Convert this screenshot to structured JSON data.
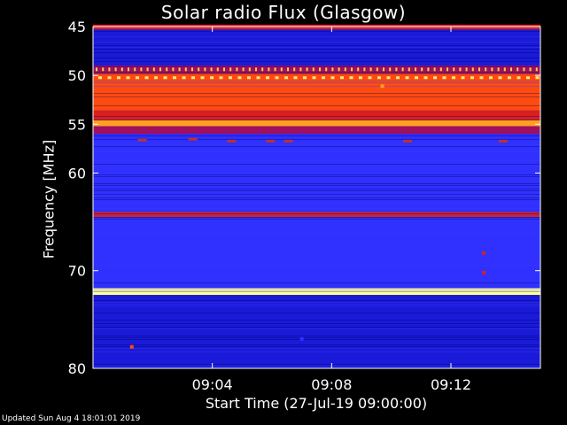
{
  "title": "Solar radio Flux (Glasgow)",
  "updated": "Updated Sun Aug  4 18:01:01 2019",
  "chart_data": {
    "type": "heatmap",
    "title": "Solar radio Flux (Glasgow)",
    "xlabel": "Start Time (27-Jul-19 09:00:00)",
    "ylabel": "Frequency [MHz]",
    "x_ticks": [
      "09:04",
      "09:08",
      "09:12"
    ],
    "x_tick_minutes": [
      4,
      8,
      12
    ],
    "xlim_minutes": [
      0,
      15
    ],
    "y_ticks": [
      "45",
      "50",
      "55",
      "60",
      "70",
      "80"
    ],
    "y_tick_values": [
      45,
      50,
      55,
      60,
      70,
      80
    ],
    "ylim": [
      45,
      80
    ],
    "y_inverted": true,
    "colormap": [
      "#10106e",
      "#1a1ad8",
      "#3030ff",
      "#a01060",
      "#d82020",
      "#ff4a10",
      "#ffa020",
      "#ffffa0"
    ],
    "bands": [
      {
        "f0": 44.8,
        "f1": 45.3,
        "level": 4
      },
      {
        "f0": 45.3,
        "f1": 49.0,
        "level": 1
      },
      {
        "f0": 49.0,
        "f1": 49.8,
        "level": 3
      },
      {
        "f0": 49.8,
        "f1": 50.8,
        "level": 5
      },
      {
        "f0": 50.8,
        "f1": 53.6,
        "level": 5
      },
      {
        "f0": 53.6,
        "f1": 54.6,
        "level": 4
      },
      {
        "f0": 54.6,
        "f1": 55.2,
        "level": 6
      },
      {
        "f0": 55.2,
        "f1": 56.0,
        "level": 3
      },
      {
        "f0": 56.0,
        "f1": 60.0,
        "level": 2
      },
      {
        "f0": 60.0,
        "f1": 64.0,
        "level": 2
      },
      {
        "f0": 64.0,
        "f1": 64.5,
        "level": 4
      },
      {
        "f0": 64.5,
        "f1": 71.8,
        "level": 2
      },
      {
        "f0": 71.8,
        "f1": 72.5,
        "level": 7
      },
      {
        "f0": 72.5,
        "f1": 80.0,
        "level": 1
      }
    ],
    "bursts": [
      {
        "t": 1.3,
        "f": 77.8,
        "level": 5
      },
      {
        "t": 7.0,
        "f": 77.0,
        "level": 2
      },
      {
        "t": 9.7,
        "f": 51.1,
        "level": 6
      },
      {
        "t": 13.1,
        "f": 68.2,
        "level": 4
      },
      {
        "t": 13.1,
        "f": 70.2,
        "level": 4
      }
    ]
  }
}
